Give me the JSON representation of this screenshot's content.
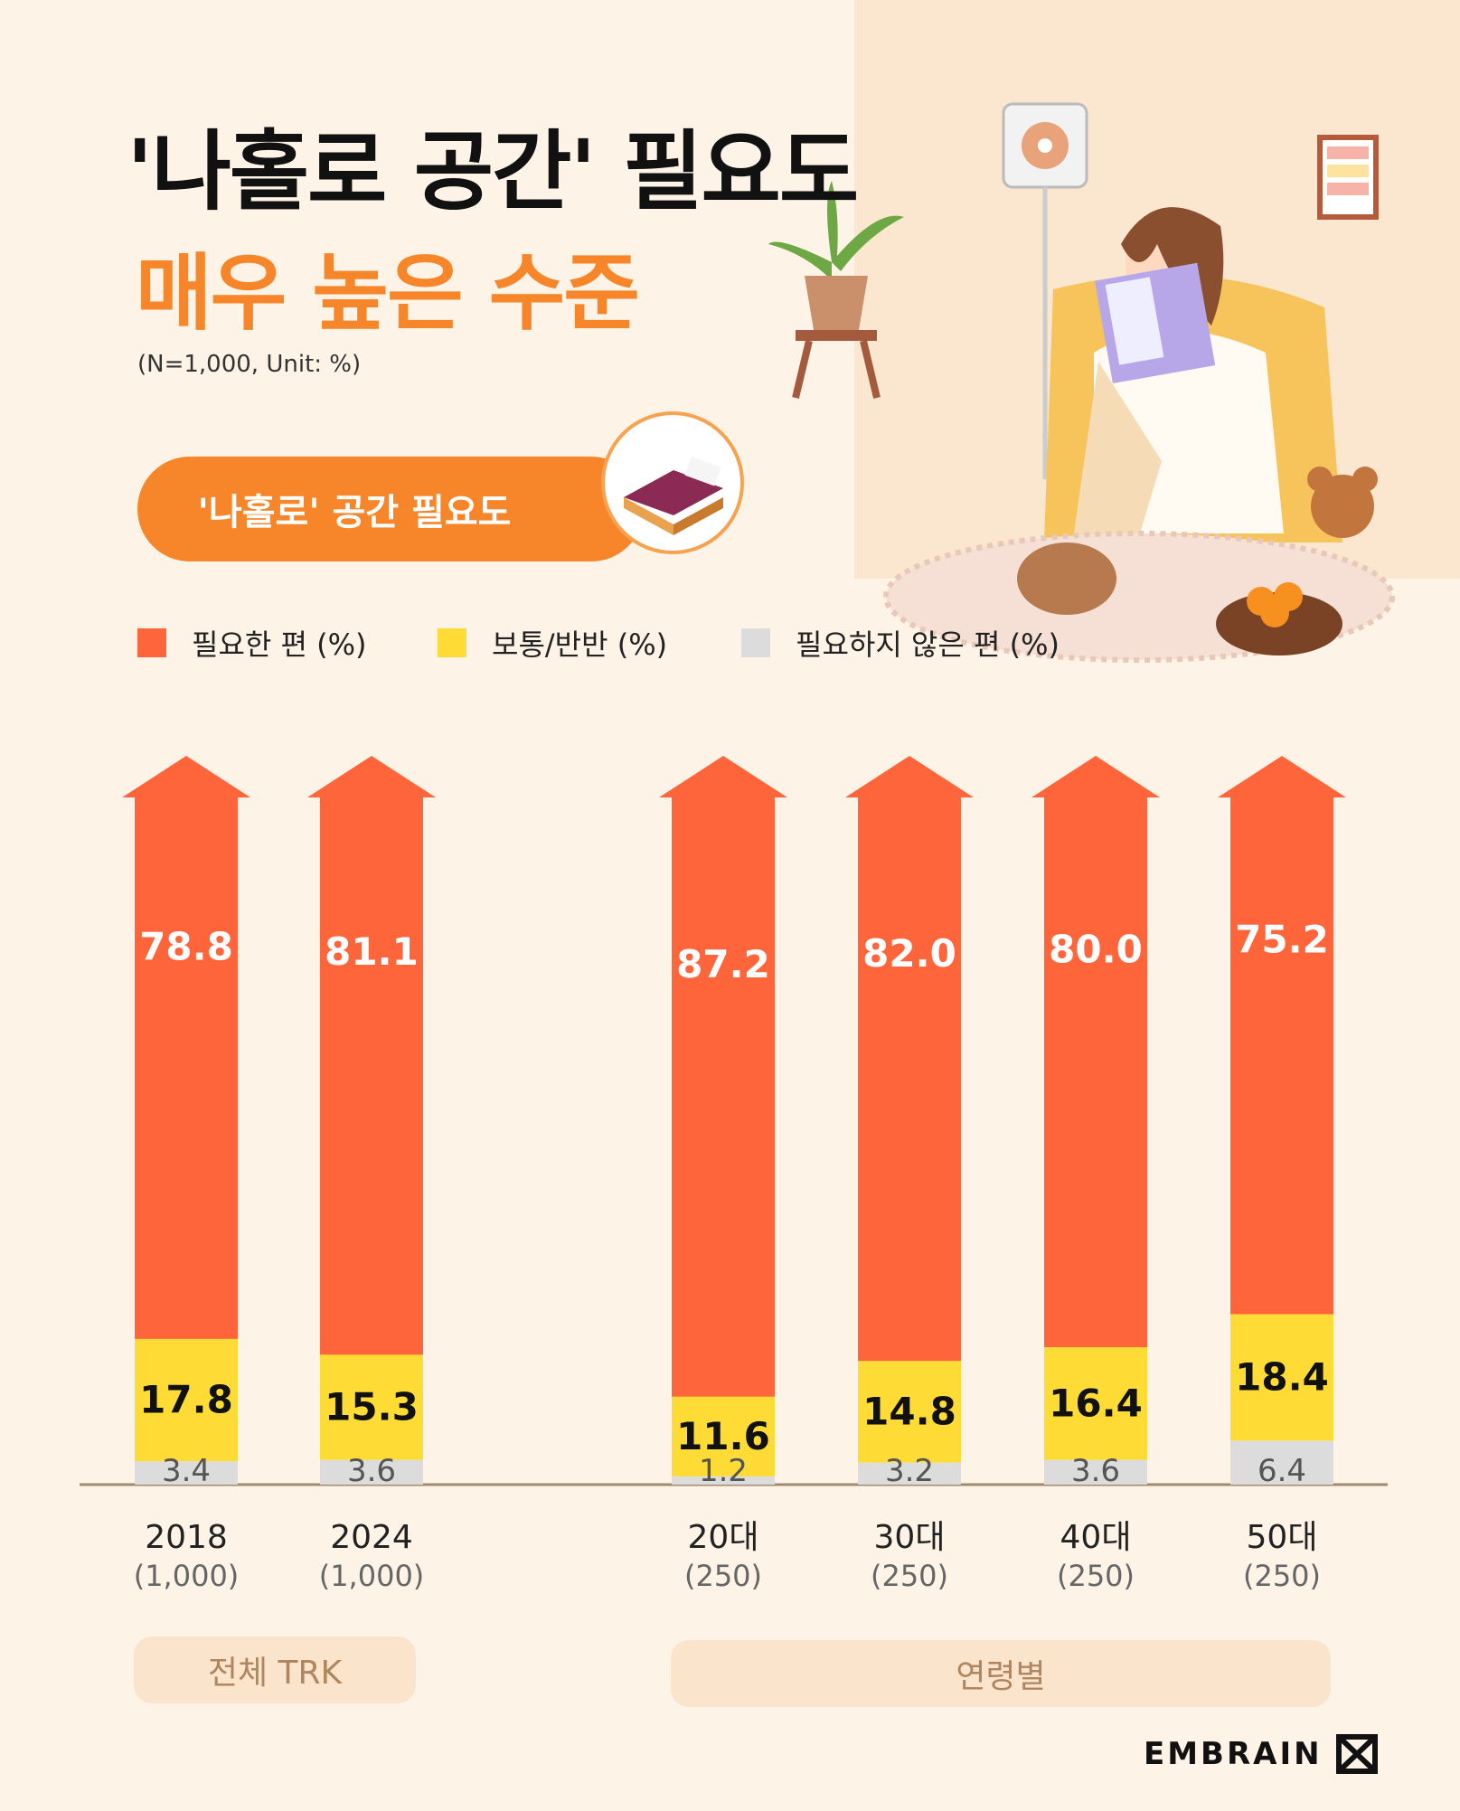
{
  "title_line1": "'나홀로 공간' 필요도",
  "title_line2": "매우 높은 수준",
  "subtitle": "(N=1,000,  Unit: %)",
  "pill_label": "'나홀로' 공간 필요도",
  "legend": [
    {
      "label": "필요한 편 (%)",
      "color": "#ff653a"
    },
    {
      "label": "보통/반반 (%)",
      "color": "#fedc35"
    },
    {
      "label": "필요하지 않은 편 (%)",
      "color": "#dcdcdc"
    }
  ],
  "groups": [
    "전체 TRK",
    "연령별"
  ],
  "brand": "EMBRAIN",
  "chart_data": {
    "type": "bar",
    "stacked": true,
    "categories": [
      "2018",
      "2024",
      "20대",
      "30대",
      "40대",
      "50대"
    ],
    "category_sublabels": [
      "(1,000)",
      "(1,000)",
      "(250)",
      "(250)",
      "(250)",
      "(250)"
    ],
    "series": [
      {
        "name": "필요한 편 (%)",
        "color": "#ff653a",
        "values": [
          78.8,
          81.1,
          87.2,
          82.0,
          80.0,
          75.2
        ]
      },
      {
        "name": "보통/반반 (%)",
        "color": "#fedc35",
        "values": [
          17.8,
          15.3,
          11.6,
          14.8,
          16.4,
          18.4
        ]
      },
      {
        "name": "필요하지 않은 편 (%)",
        "color": "#dcdcdc",
        "values": [
          3.4,
          3.6,
          1.2,
          3.2,
          3.6,
          6.4
        ]
      }
    ],
    "value_labels": [
      [
        "78.8",
        "81.1",
        "87.2",
        "82.0",
        "80.0",
        "75.2"
      ],
      [
        "17.8",
        "15.3",
        "11.6",
        "14.8",
        "16.4",
        "18.4"
      ],
      [
        "3.4",
        "3.6",
        "1.2",
        "3.2",
        "3.6",
        "6.4"
      ]
    ],
    "ylim": [
      0,
      100
    ]
  }
}
